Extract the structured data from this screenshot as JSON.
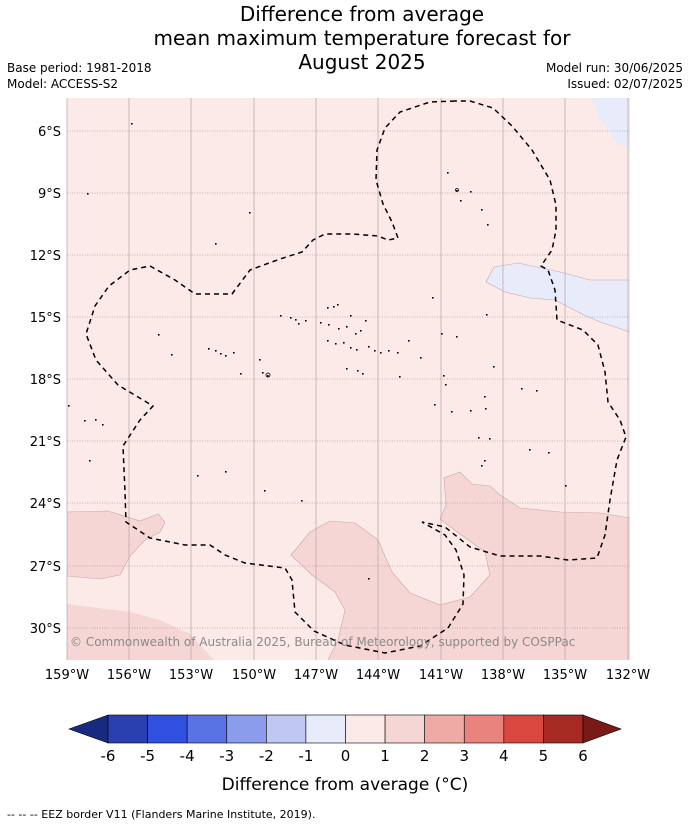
{
  "title": {
    "line1": "Difference from average",
    "line2": "mean maximum temperature forecast for",
    "line3": "August 2025"
  },
  "meta": {
    "base_period": "Base period: 1981-2018",
    "model": "Model: ACCESS-S2",
    "model_run": "Model run: 30/06/2025",
    "issued": "Issued: 02/07/2025"
  },
  "map": {
    "lat_labels": [
      "6°S",
      "9°S",
      "12°S",
      "15°S",
      "18°S",
      "21°S",
      "24°S",
      "27°S",
      "30°S"
    ],
    "lon_labels": [
      "159°W",
      "156°W",
      "153°W",
      "150°W",
      "147°W",
      "144°W",
      "141°W",
      "138°W",
      "135°W",
      "132°W"
    ],
    "copyright": "© Commonwealth of Australia 2025, Bureau of Meteorology, supported by COSPPac",
    "colors": {
      "background_anomaly": "#fbeae8",
      "warm_anomaly": "#f5d6d4",
      "cool_anomaly": "#e8ebfa"
    }
  },
  "colorbar": {
    "ticks": [
      "-6",
      "-5",
      "-4",
      "-3",
      "-2",
      "-1",
      "0",
      "1",
      "2",
      "3",
      "4",
      "5",
      "6"
    ],
    "colors": [
      "#2a3fb0",
      "#3050e0",
      "#5a73e4",
      "#8a9ceb",
      "#bfc7f3",
      "#e8ebfa",
      "#fbeae8",
      "#f5d6d4",
      "#efaaa6",
      "#e8837d",
      "#d9473f",
      "#a72a22"
    ],
    "low_extend_color": "#172a80",
    "high_extend_color": "#7a1a16",
    "label": "Difference from average (°C)"
  },
  "footer": {
    "eez_note": "-- -- -- EEZ border V11 (Flanders Marine Institute, 2019)."
  }
}
